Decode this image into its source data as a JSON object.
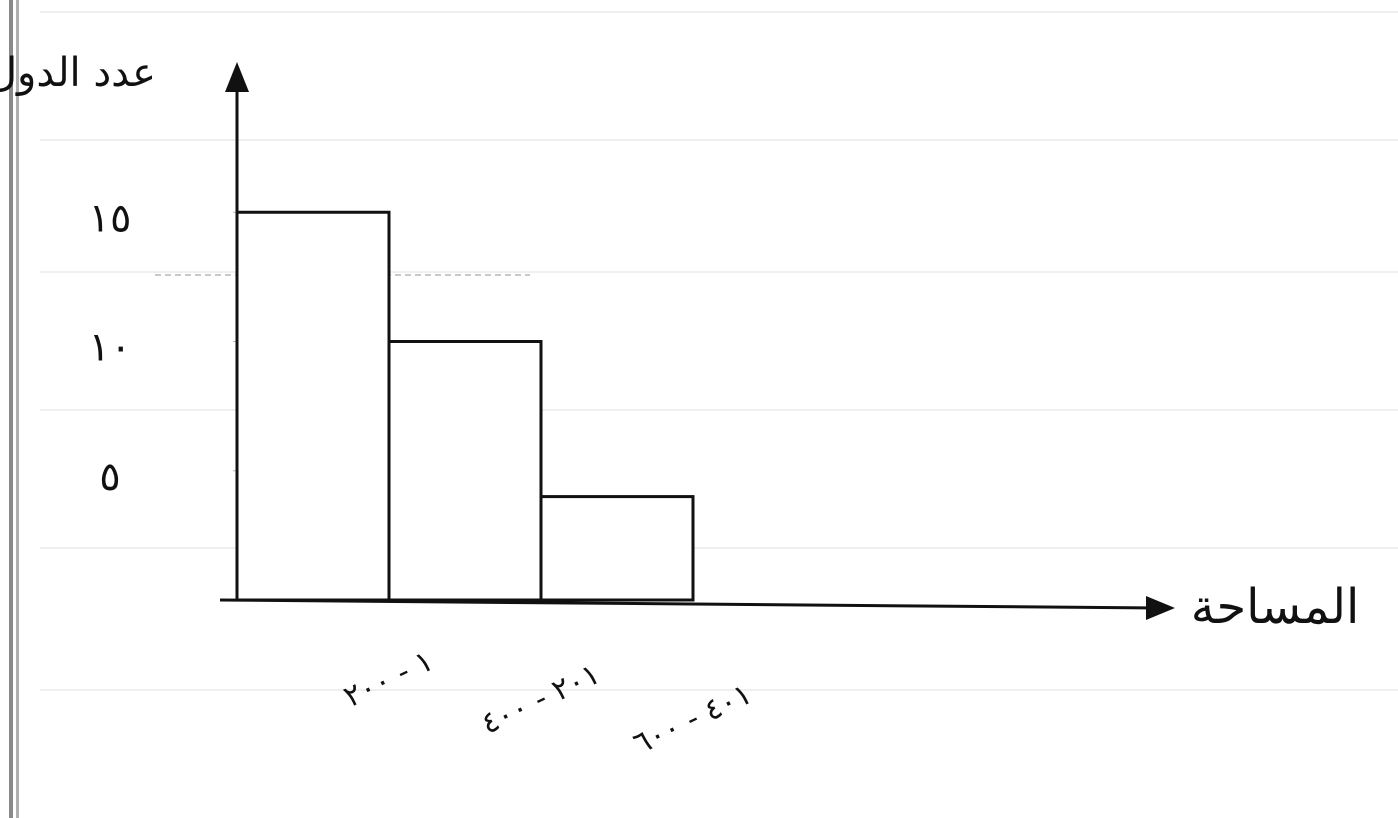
{
  "chart_data": {
    "type": "bar",
    "y_label": "عدد الدول",
    "x_label": "المساحة",
    "categories": [
      "١ - ٢٠٠",
      "٢٠١ - ٤٠٠",
      "٤٠١ - ٦٠٠"
    ],
    "values": [
      15,
      10,
      4
    ],
    "color": "#ffffff",
    "edge_color": "#111111",
    "ylim": [
      0,
      20
    ],
    "yticks": [
      {
        "value": 5,
        "label": "٥"
      },
      {
        "value": 10,
        "label": "١٠"
      },
      {
        "value": 15,
        "label": "١٥"
      }
    ],
    "grid": false
  }
}
